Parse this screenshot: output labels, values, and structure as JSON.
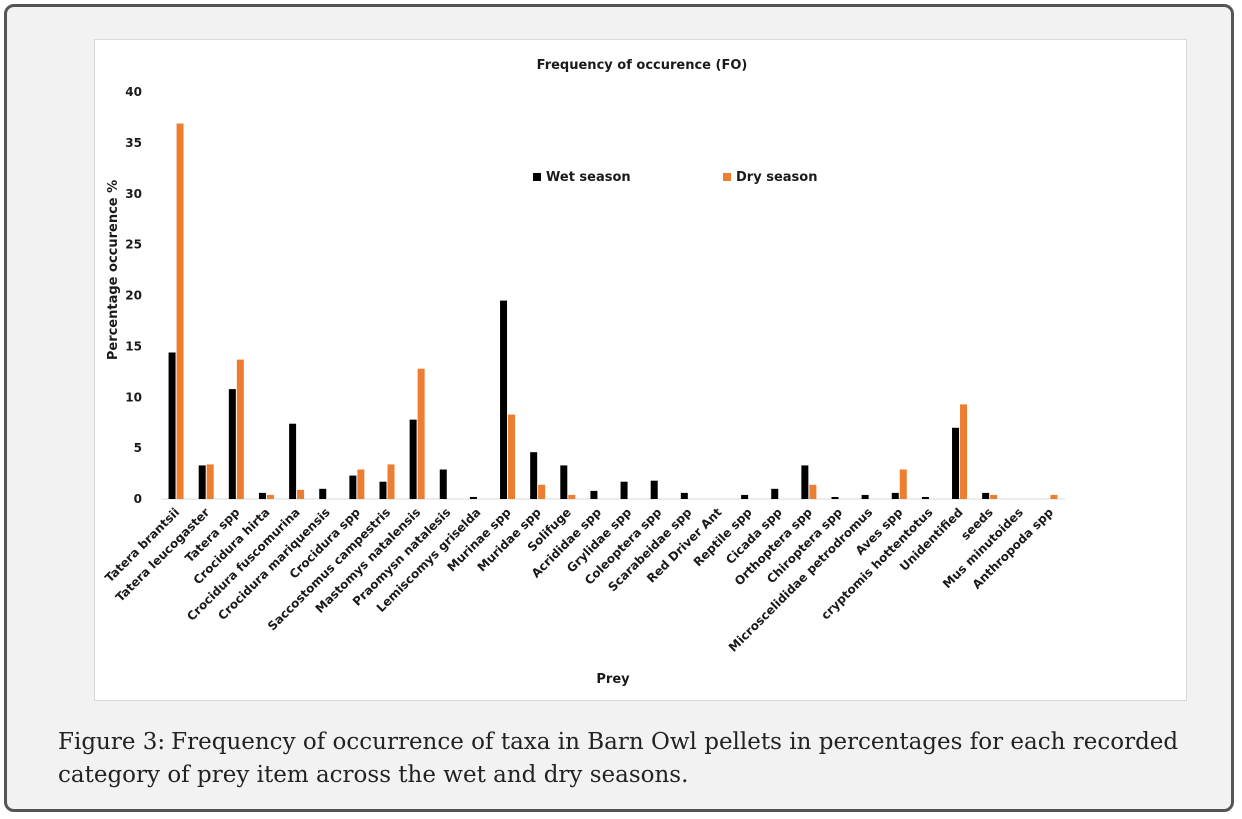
{
  "chart_data": {
    "type": "bar",
    "title": "Frequency of occurence (FO)",
    "xlabel": "Prey",
    "ylabel": "Percentage occurence %",
    "ylim": [
      0,
      40
    ],
    "yticks": [
      0,
      5,
      10,
      15,
      20,
      25,
      30,
      35,
      40
    ],
    "grid": false,
    "legend_position": "top-center",
    "categories": [
      "Tatera brantsii",
      "Tatera leucogaster",
      "Tatera spp",
      "Crocidura hirta",
      "Crocidura fuscomurina",
      "Crocidura mariquensis",
      "Crocidura spp",
      "Saccostomus campestris",
      "Mastomys natalensis",
      "Praomysn natalesis",
      "Lemiscomys griselda",
      "Murinae spp",
      "Muridae spp",
      "Solifuge",
      "Acrididae spp",
      "Grylidae spp",
      "Coleoptera spp",
      "Scarabeidae spp",
      "Red Driver Ant",
      "Reptile spp",
      "Cicada spp",
      "Orthoptera spp",
      "Chiroptera spp",
      "Microscelididae petrodromus",
      "Aves spp",
      "cryptomis hottentotus",
      "Unidentified",
      "seeds",
      "Mus minutoides",
      "Anthropoda spp"
    ],
    "series": [
      {
        "name": "Wet season",
        "color": "#000000",
        "values": [
          14.4,
          3.3,
          10.8,
          0.6,
          7.4,
          1.0,
          2.3,
          1.7,
          7.8,
          2.9,
          0.2,
          19.5,
          4.6,
          3.3,
          0.8,
          1.7,
          1.8,
          0.6,
          0,
          0.4,
          1.0,
          3.3,
          0.2,
          0.4,
          0.6,
          0.2,
          7.0,
          0.6,
          0,
          0
        ]
      },
      {
        "name": "Dry season",
        "color": "#ed7d31",
        "values": [
          36.9,
          3.4,
          13.7,
          0.4,
          0.9,
          0,
          2.9,
          3.4,
          12.8,
          0,
          0,
          8.3,
          1.4,
          0.4,
          0,
          0,
          0,
          0,
          0,
          0,
          0,
          1.4,
          0,
          0,
          2.9,
          0,
          9.3,
          0.4,
          0,
          0.4
        ]
      }
    ]
  },
  "caption": {
    "label": "Figure 3:",
    "text": "Frequency of occurrence of taxa in Barn Owl pellets in percentages for each recorded category of prey item across the wet and dry seasons."
  }
}
